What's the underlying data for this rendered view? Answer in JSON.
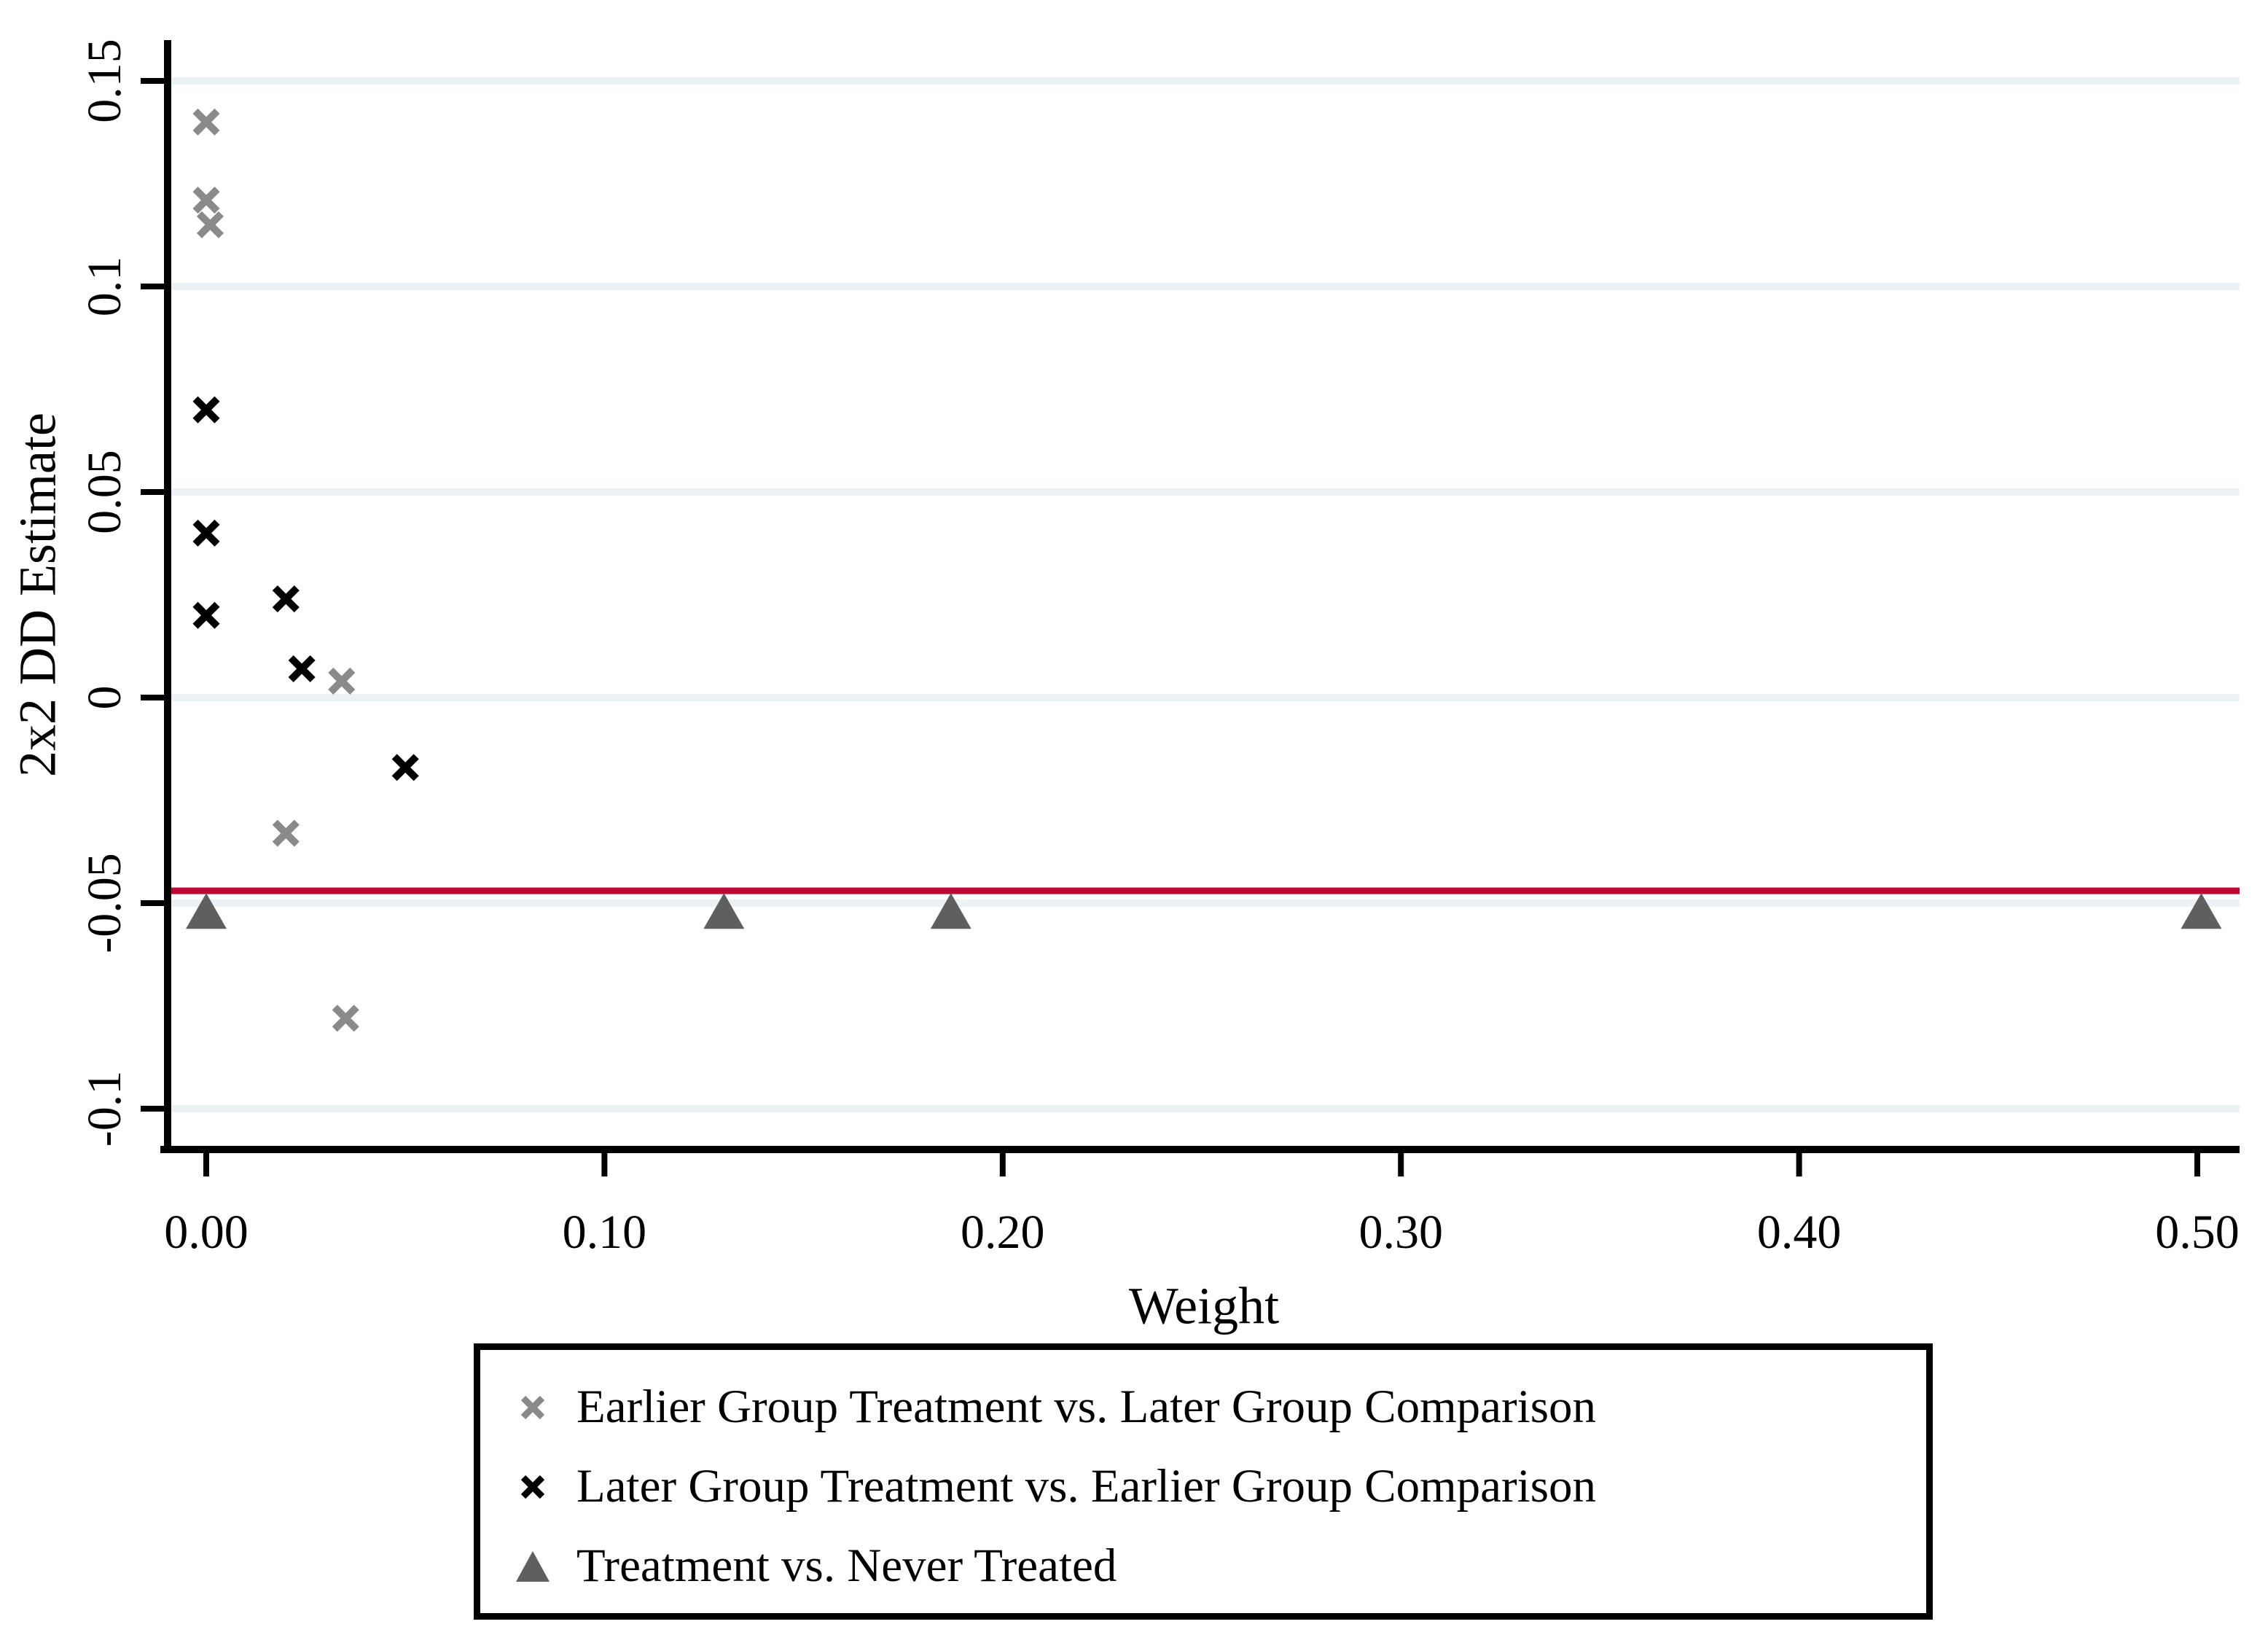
{
  "chart_data": {
    "type": "scatter",
    "title": "",
    "xlabel": "Weight",
    "ylabel": "2x2 DD Estimate",
    "xlim": [
      -0.01,
      0.515
    ],
    "ylim": [
      -0.11,
      0.16
    ],
    "grid": true,
    "gridline_color": "#eaf2f3",
    "axis_color": "#000000",
    "x_ticks": {
      "values": [
        0.0,
        0.1,
        0.2,
        0.3,
        0.4,
        0.5
      ],
      "labels": [
        "0.00",
        "0.10",
        "0.20",
        "0.30",
        "0.40",
        "0.50"
      ]
    },
    "y_ticks": {
      "values": [
        0.15,
        0.1,
        0.05,
        0.0,
        -0.05,
        -0.1
      ],
      "labels": [
        "0.15",
        "0.1",
        "0.05",
        "0",
        "-0.05",
        "-0.1"
      ]
    },
    "reference_line": {
      "value": -0.047,
      "color": "#c10534",
      "orientation": "horizontal"
    },
    "legend_position": "below",
    "series": [
      {
        "name": "Earlier Group Treatment vs. Later Group Comparison",
        "marker": "x",
        "color": "#8a8a8a",
        "points": [
          [
            0.0,
            0.14
          ],
          [
            0.0,
            0.121
          ],
          [
            0.001,
            0.115
          ],
          [
            0.034,
            0.004
          ],
          [
            0.02,
            -0.033
          ],
          [
            0.035,
            -0.078
          ]
        ]
      },
      {
        "name": "Later Group Treatment vs. Earlier Group Comparison",
        "marker": "x",
        "color": "#000000",
        "points": [
          [
            0.0,
            0.07
          ],
          [
            0.0,
            0.04
          ],
          [
            0.0,
            0.02
          ],
          [
            0.02,
            0.024
          ],
          [
            0.024,
            0.007
          ],
          [
            0.05,
            -0.017
          ]
        ]
      },
      {
        "name": "Treatment vs. Never Treated",
        "marker": "triangle",
        "color": "#5f5f5f",
        "points": [
          [
            0.0,
            -0.052
          ],
          [
            0.13,
            -0.052
          ],
          [
            0.187,
            -0.052
          ],
          [
            0.501,
            -0.052
          ]
        ]
      }
    ]
  }
}
